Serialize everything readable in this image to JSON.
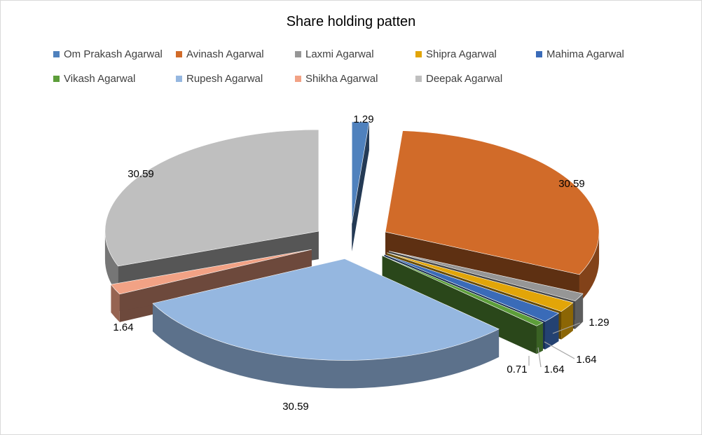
{
  "chart_data": {
    "type": "pie",
    "title": "Share holding patten",
    "legend_position": "top",
    "three_d": true,
    "exploded": true,
    "slices": [
      {
        "name": "Om Prakash Agarwal",
        "value": 1.29,
        "label": "1.29",
        "color": "#4f81bd"
      },
      {
        "name": "Avinash Agarwal",
        "value": 30.59,
        "label": "30.59",
        "color": "#d16b29"
      },
      {
        "name": "Laxmi Agarwal",
        "value": 1.29,
        "label": "1.29",
        "color": "#969696"
      },
      {
        "name": "Shipra Agarwal",
        "value": 1.64,
        "label": "1.64",
        "color": "#e2a508"
      },
      {
        "name": "Mahima Agarwal",
        "value": 1.64,
        "label": "1.64",
        "color": "#3a6bb8"
      },
      {
        "name": "Vikash Agarwal",
        "value": 0.71,
        "label": "0.71",
        "color": "#5d9e3a"
      },
      {
        "name": "Rupesh Agarwal",
        "value": 30.59,
        "label": "30.59",
        "color": "#95b7e0"
      },
      {
        "name": "Shikha Agarwal",
        "value": 1.64,
        "label": "1.64",
        "color": "#f2a285"
      },
      {
        "name": "Deepak Agarwal",
        "value": 30.59,
        "label": "30.59",
        "color": "#bfbfbf"
      }
    ]
  }
}
